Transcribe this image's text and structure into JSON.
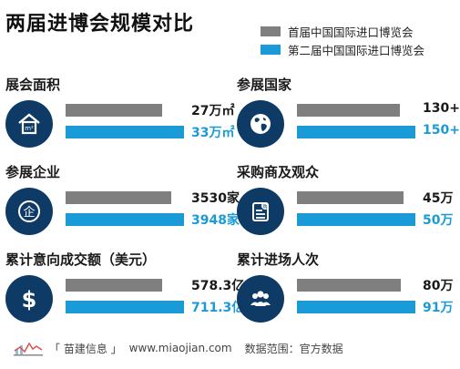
{
  "title": "两届进博会规模对比",
  "legend": [
    {
      "label": "首届中国国际进口博览会",
      "color": "#7f7f7f"
    },
    {
      "label": "第二届中国国际进口博览会",
      "color": "#1a9bd7"
    }
  ],
  "chart_data": {
    "type": "bar",
    "title": "两届进博会规模对比",
    "series": [
      {
        "name": "首届中国国际进口博览会",
        "color": "#7f7f7f"
      },
      {
        "name": "第二届中国国际进口博览会",
        "color": "#1a9bd7"
      }
    ],
    "panels": [
      {
        "label": "展会面积",
        "icon": "house-icon",
        "values": [
          27,
          33
        ],
        "labels": [
          "27万㎡",
          "33万㎡"
        ]
      },
      {
        "label": "参展国家",
        "icon": "globe-icon",
        "values": [
          130,
          150
        ],
        "labels": [
          "130+",
          "150+"
        ]
      },
      {
        "label": "参展企业",
        "icon": "enterprise-icon",
        "values": [
          3530,
          3948
        ],
        "labels": [
          "3530家",
          "3948家"
        ]
      },
      {
        "label": "采购商及观众",
        "icon": "purchase-list-icon",
        "values": [
          45,
          50
        ],
        "labels": [
          "45万",
          "50万"
        ]
      },
      {
        "label": "累计意向成交额（美元）",
        "icon": "dollar-icon",
        "values": [
          578.3,
          711.3
        ],
        "labels": [
          "578.3亿",
          "711.3亿"
        ]
      },
      {
        "label": "累计进场人次",
        "icon": "people-icon",
        "values": [
          80,
          91
        ],
        "labels": [
          "80万",
          "91万"
        ]
      }
    ]
  },
  "footer": {
    "brand": "「 苗建信息 」",
    "url": "www.miaojian.com",
    "source": "数据范围：官方数据"
  }
}
